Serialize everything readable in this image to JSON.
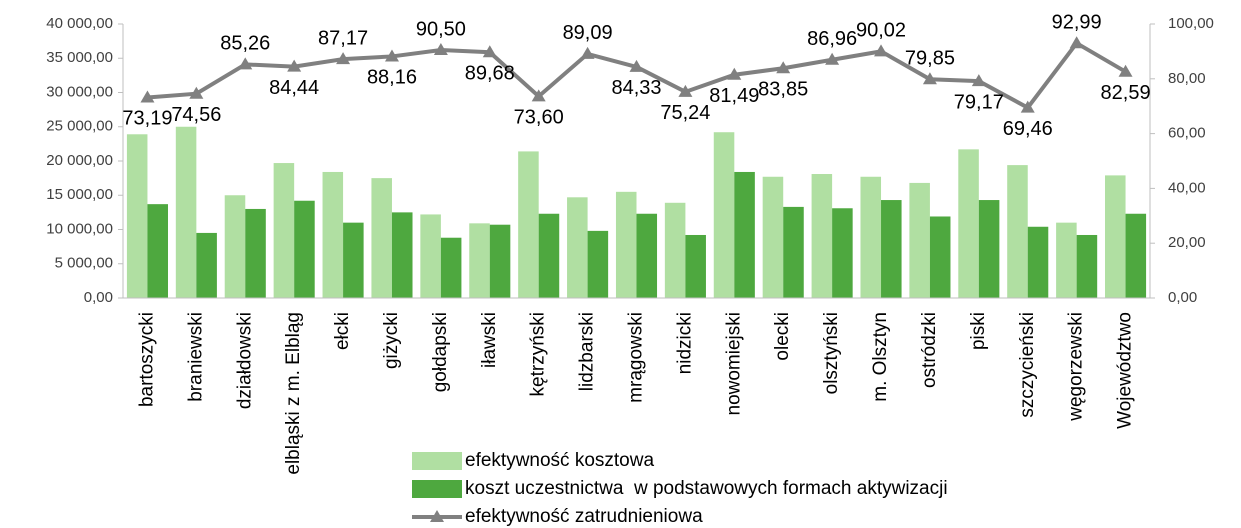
{
  "chart_data": {
    "type": "bar",
    "categories": [
      "bartoszycki",
      "braniewski",
      "działdowski",
      "elbląski z m. Elbląg",
      "ełcki",
      "giżycki",
      "gołdapski",
      "iławski",
      "kętrzyński",
      "lidzbarski",
      "mrągowski",
      "nidzicki",
      "nowomiejski",
      "olecki",
      "olsztyński",
      "m. Olsztyn",
      "ostródzki",
      "piski",
      "szczycieński",
      "węgorzewski",
      "Województwo"
    ],
    "series": [
      {
        "name": "efektywność kosztowa",
        "type": "bar",
        "color": "#b0dfa2",
        "values": [
          23900,
          25000,
          15000,
          19700,
          18400,
          17500,
          12200,
          10900,
          21400,
          14700,
          15500,
          13900,
          24200,
          17700,
          18100,
          17700,
          16800,
          21700,
          19400,
          11000,
          17900
        ]
      },
      {
        "name": "koszt uczestnictwa  w podstawowych formach aktywizacji",
        "type": "bar",
        "color": "#4ea83f",
        "values": [
          13700,
          9500,
          13000,
          14200,
          11000,
          12500,
          8800,
          10700,
          12300,
          9800,
          12300,
          9200,
          18400,
          13300,
          13100,
          14300,
          11900,
          14300,
          10400,
          9200,
          12300
        ]
      },
      {
        "name": "efektywność zatrudnieniowa",
        "type": "line",
        "axis": "y2",
        "color": "#808080",
        "values": [
          73.19,
          74.56,
          85.26,
          84.44,
          87.17,
          88.16,
          90.5,
          89.68,
          73.6,
          89.09,
          84.33,
          75.24,
          81.49,
          83.85,
          86.96,
          90.02,
          79.85,
          79.17,
          69.46,
          92.99,
          82.59
        ],
        "value_labels": [
          "73,19",
          "74,56",
          "85,26",
          "84,44",
          "87,17",
          "88,16",
          "90,50",
          "89,68",
          "73,60",
          "89,09",
          "84,33",
          "75,24",
          "81,49",
          "83,85",
          "86,96",
          "90,02",
          "79,85",
          "79,17",
          "69,46",
          "92,99",
          "82,59"
        ]
      }
    ],
    "ylim": [
      0,
      40000
    ],
    "yticks": [
      {
        "value": 0,
        "label": "0,00"
      },
      {
        "value": 5000,
        "label": "5 000,00"
      },
      {
        "value": 10000,
        "label": "10 000,00"
      },
      {
        "value": 15000,
        "label": "15 000,00"
      },
      {
        "value": 20000,
        "label": "20 000,00"
      },
      {
        "value": 25000,
        "label": "25 000,00"
      },
      {
        "value": 30000,
        "label": "30 000,00"
      },
      {
        "value": 35000,
        "label": "35 000,00"
      },
      {
        "value": 40000,
        "label": "40 000,00"
      }
    ],
    "y2lim": [
      0,
      100
    ],
    "y2ticks": [
      {
        "value": 0,
        "label": "0,00"
      },
      {
        "value": 20,
        "label": "20,00"
      },
      {
        "value": 40,
        "label": "40,00"
      },
      {
        "value": 60,
        "label": "60,00"
      },
      {
        "value": 80,
        "label": "80,00"
      },
      {
        "value": 100,
        "label": "100,00"
      }
    ],
    "grid": false,
    "legend": "bottom"
  }
}
